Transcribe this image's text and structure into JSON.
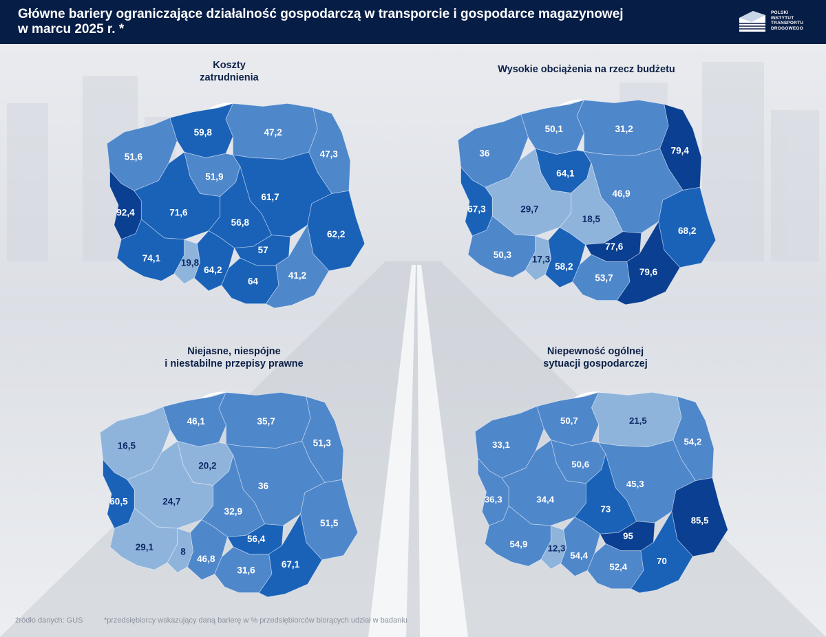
{
  "header": {
    "title_line1": "Główne bariery ograniczające działalność gospodarczą w transporcie i gospodarce magazynowej",
    "title_line2": "w marcu 2025 r. *",
    "logo_lines": [
      "POLSKI",
      "INSTYTUT",
      "TRANSPORTU",
      "DROGOWEGO"
    ]
  },
  "colors": {
    "header_bg": "#061d46",
    "level_1": "#8fb4dc",
    "level_2": "#4f87cb",
    "level_3": "#1a62b8",
    "level_4": "#0a3f91",
    "label_light": "#ffffff",
    "label_dark": "#0d2a66"
  },
  "maps": [
    {
      "title": "Koszty\nzatrudnienia",
      "values": {
        "zachodniopomorskie": "51,6",
        "pomorskie": "59,8",
        "warminsko_mazurskie": "47,2",
        "podlaskie": "47,3",
        "kujawsko_pomorskie": "51,9",
        "lubuskie": "92,4",
        "wielkopolskie": "71,6",
        "mazowieckie": "61,7",
        "lodzkie": "56,8",
        "lubelskie": "62,2",
        "dolnoslaskie": "74,1",
        "opolskie": "19,8",
        "slaskie": "64,2",
        "swietokrzyskie": "57",
        "malopolskie": "64",
        "podkarpackie": "41,2"
      }
    },
    {
      "title": "Wysokie obciążenia na rzecz budżetu",
      "values": {
        "zachodniopomorskie": "36",
        "pomorskie": "50,1",
        "warminsko_mazurskie": "31,2",
        "podlaskie": "79,4",
        "kujawsko_pomorskie": "64,1",
        "lubuskie": "67,3",
        "wielkopolskie": "29,7",
        "mazowieckie": "46,9",
        "lodzkie": "18,5",
        "lubelskie": "68,2",
        "dolnoslaskie": "50,3",
        "opolskie": "17,3",
        "slaskie": "58,2",
        "swietokrzyskie": "77,6",
        "malopolskie": "53,7",
        "podkarpackie": "79,6"
      }
    },
    {
      "title": "Niejasne, niespójne\ni niestabilne przepisy prawne",
      "values": {
        "zachodniopomorskie": "16,5",
        "pomorskie": "46,1",
        "warminsko_mazurskie": "35,7",
        "podlaskie": "51,3",
        "kujawsko_pomorskie": "20,2",
        "lubuskie": "60,5",
        "wielkopolskie": "24,7",
        "mazowieckie": "36",
        "lodzkie": "32,9",
        "lubelskie": "51,5",
        "dolnoslaskie": "29,1",
        "opolskie": "8",
        "slaskie": "46,8",
        "swietokrzyskie": "56,4",
        "malopolskie": "31,6",
        "podkarpackie": "67,1"
      }
    },
    {
      "title": "Niepewność ogólnej\nsytuacji gospodarczej",
      "values": {
        "zachodniopomorskie": "33,1",
        "pomorskie": "50,7",
        "warminsko_mazurskie": "21,5",
        "podlaskie": "54,2",
        "kujawsko_pomorskie": "50,6",
        "lubuskie": "36,3",
        "wielkopolskie": "34,4",
        "mazowieckie": "45,3",
        "lodzkie": "73",
        "lubelskie": "85,5",
        "dolnoslaskie": "54,9",
        "opolskie": "12,3",
        "slaskie": "54,4",
        "swietokrzyskie": "95",
        "malopolskie": "52,4",
        "podkarpackie": "70"
      }
    }
  ],
  "footer": {
    "source": "źródło danych: GUS",
    "note": "*przedsiębiorcy wskazujący daną barierę w % przedsiębiorców biorących udział w badaniu"
  }
}
